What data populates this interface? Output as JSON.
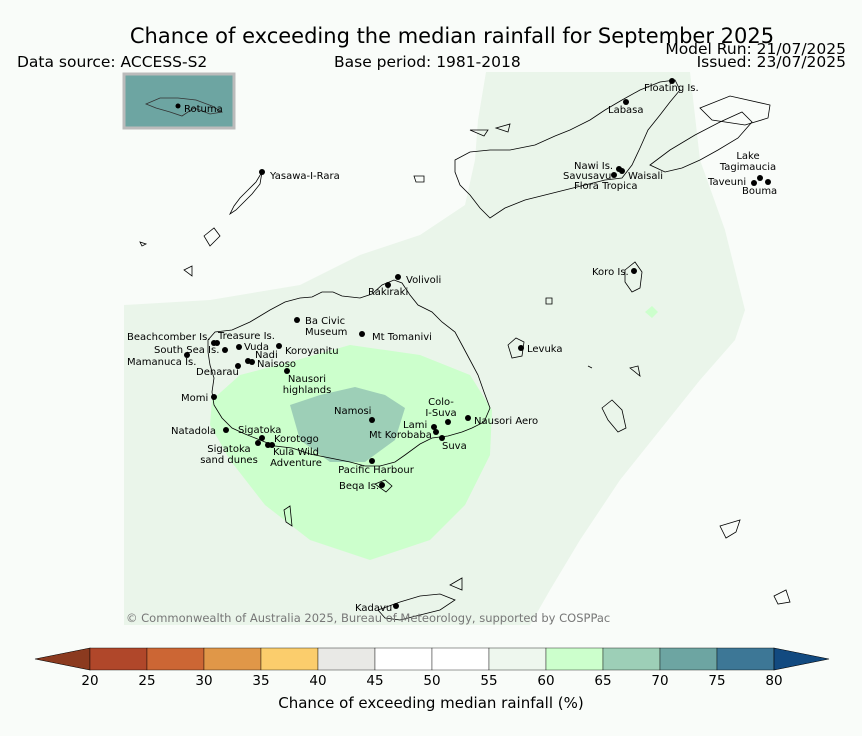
{
  "header": {
    "title": "Chance of exceeding the median rainfall for September 2025",
    "data_source": "Data source: ACCESS-S2",
    "base_period": "Base period: 1981-2018",
    "model_run": "Model Run: 21/07/2025",
    "issued": "Issued: 23/07/2025"
  },
  "inset": {
    "label": "Rotuma"
  },
  "copyright": "© Commonwealth of Australia 2025, Bureau of Meteorology, supported by COSPPac",
  "places": [
    {
      "name": "Floating Is.",
      "lines": [
        "Floating Is."
      ]
    },
    {
      "name": "Labasa",
      "lines": [
        "Labasa"
      ]
    },
    {
      "name": "Yasawa-I-Rara",
      "lines": [
        "Yasawa-I-Rara"
      ]
    },
    {
      "name": "Nawi Is.",
      "lines": [
        "Nawi Is."
      ]
    },
    {
      "name": "Savusavu",
      "lines": [
        "Savusavu"
      ]
    },
    {
      "name": "Waisali",
      "lines": [
        "Waisali"
      ]
    },
    {
      "name": "Flora Tropica",
      "lines": [
        "Flora Tropica"
      ]
    },
    {
      "name": "Lake Tagimaucia",
      "lines": [
        "Lake",
        "Tagimaucia"
      ]
    },
    {
      "name": "Taveuni",
      "lines": [
        "Taveuni"
      ]
    },
    {
      "name": "Bouma",
      "lines": [
        "Bouma"
      ]
    },
    {
      "name": "Koro Is.",
      "lines": [
        "Koro Is."
      ]
    },
    {
      "name": "Volivoli",
      "lines": [
        "Volivoli"
      ]
    },
    {
      "name": "Rakiraki",
      "lines": [
        "Rakiraki"
      ]
    },
    {
      "name": "Ba Civic Museum",
      "lines": [
        "Ba Civic",
        "Museum"
      ]
    },
    {
      "name": "Mt Tomanivi",
      "lines": [
        "Mt Tomanivi"
      ]
    },
    {
      "name": "Levuka",
      "lines": [
        "Levuka"
      ]
    },
    {
      "name": "Beachcomber Is.",
      "lines": [
        "Beachcomber Is."
      ]
    },
    {
      "name": "Treasure Is.",
      "lines": [
        "Treasure Is."
      ]
    },
    {
      "name": "South Sea Is.",
      "lines": [
        "South Sea Is."
      ]
    },
    {
      "name": "Vuda",
      "lines": [
        "Vuda"
      ]
    },
    {
      "name": "Koroyanitu",
      "lines": [
        "Koroyanitu"
      ]
    },
    {
      "name": "Nadi",
      "lines": [
        "Nadi"
      ]
    },
    {
      "name": "Mamanuca Is.",
      "lines": [
        "Mamanuca Is."
      ]
    },
    {
      "name": "Naisoso",
      "lines": [
        "Naisoso"
      ]
    },
    {
      "name": "Denarau",
      "lines": [
        "Denarau"
      ]
    },
    {
      "name": "Nausori highlands",
      "lines": [
        "Nausori",
        "highlands"
      ]
    },
    {
      "name": "Momi",
      "lines": [
        "Momi"
      ]
    },
    {
      "name": "Namosi",
      "lines": [
        "Namosi"
      ]
    },
    {
      "name": "Colo-I-Suva",
      "lines": [
        "Colo-",
        "I-Suva"
      ]
    },
    {
      "name": "Nausori Aero",
      "lines": [
        "Nausori Aero"
      ]
    },
    {
      "name": "Lami",
      "lines": [
        "Lami"
      ]
    },
    {
      "name": "Mt Korobaba",
      "lines": [
        "Mt Korobaba"
      ]
    },
    {
      "name": "Suva",
      "lines": [
        "Suva"
      ]
    },
    {
      "name": "Natadola",
      "lines": [
        "Natadola"
      ]
    },
    {
      "name": "Sigatoka",
      "lines": [
        "Sigatoka"
      ]
    },
    {
      "name": "Korotogo",
      "lines": [
        "Korotogo"
      ]
    },
    {
      "name": "Sigatoka sand dunes",
      "lines": [
        "Sigatoka",
        "sand dunes"
      ]
    },
    {
      "name": "Kula Wild Adventure",
      "lines": [
        "Kula Wild",
        "Adventure"
      ]
    },
    {
      "name": "Pacific Harbour",
      "lines": [
        "Pacific Harbour"
      ]
    },
    {
      "name": "Beqa Is.",
      "lines": [
        "Beqa Is."
      ]
    },
    {
      "name": "Kadavu",
      "lines": [
        "Kadavu"
      ]
    }
  ],
  "colorbar": {
    "label": "Chance of exceeding median rainfall (%)",
    "ticks": [
      20,
      25,
      30,
      35,
      40,
      45,
      50,
      55,
      60,
      65,
      70,
      75,
      80
    ],
    "under_color": "#8b3a1f",
    "over_color": "#124a80",
    "colors": [
      "#b0472a",
      "#cc6634",
      "#e09748",
      "#fbcd6c",
      "#e9e9e6",
      "#ffffff",
      "#ffffff",
      "#eef7ee",
      "#ccffcc",
      "#9dcfb7",
      "#6da5a2",
      "#3d7796"
    ]
  }
}
